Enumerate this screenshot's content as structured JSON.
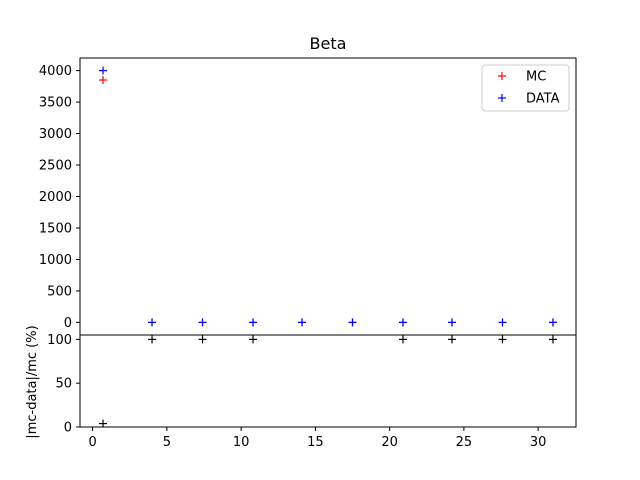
{
  "chart_data": {
    "type": "scatter",
    "title": "Beta",
    "top": {
      "ylabel": "",
      "ylim": [
        -200,
        4200
      ],
      "yticks": [
        0,
        500,
        1000,
        1500,
        2000,
        2500,
        3000,
        3500,
        4000
      ],
      "series": [
        {
          "name": "MC",
          "color": "#ff0000",
          "marker": "+",
          "x": [
            0.7,
            4.0,
            7.4,
            10.8,
            14.1,
            17.5,
            20.9,
            24.2,
            27.6,
            31.0
          ],
          "y": [
            3850,
            0,
            0,
            0,
            0,
            0,
            0,
            0,
            0,
            0
          ]
        },
        {
          "name": "DATA",
          "color": "#0000ff",
          "marker": "+",
          "x": [
            0.7,
            4.0,
            7.4,
            10.8,
            14.1,
            17.5,
            20.9,
            24.2,
            27.6,
            31.0
          ],
          "y": [
            4000,
            0,
            0,
            0,
            0,
            0,
            0,
            0,
            0,
            0
          ]
        }
      ],
      "legend": "top-right",
      "grid": false
    },
    "bottom": {
      "ylabel": "|mc-data|/mc (%)",
      "ylim": [
        0,
        105
      ],
      "yticks": [
        0,
        50,
        100
      ],
      "series": [
        {
          "name": "",
          "color": "#000000",
          "marker": "+",
          "x": [
            0.7,
            4.0,
            7.4,
            10.8,
            20.9,
            24.2,
            27.6,
            31.0
          ],
          "y": [
            3.9,
            100,
            100,
            100,
            100,
            100,
            100,
            100
          ]
        }
      ],
      "grid": false
    },
    "xlim": [
      -0.85,
      32.55
    ],
    "xticks": [
      0,
      5,
      10,
      15,
      20,
      25,
      30
    ]
  }
}
